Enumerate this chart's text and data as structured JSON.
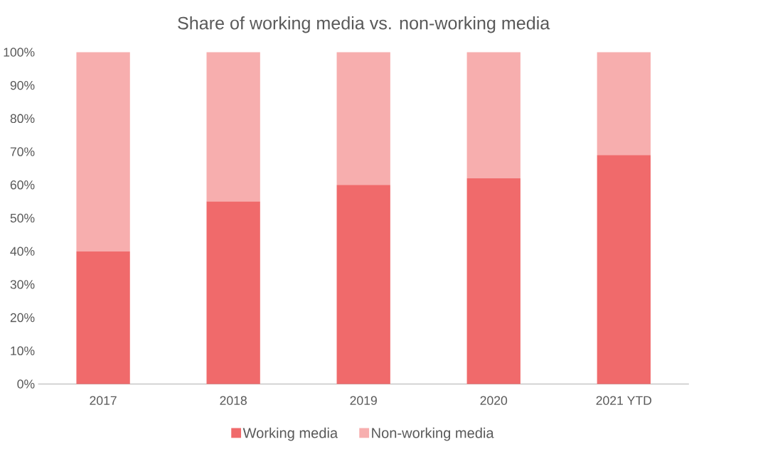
{
  "chart_data": {
    "type": "bar",
    "title": "Share of working media vs. non-working media",
    "stacked": true,
    "categories": [
      "2017",
      "2018",
      "2019",
      "2020",
      "2021 YTD"
    ],
    "series": [
      {
        "name": "Working media",
        "color": "#f06a6b",
        "values": [
          40,
          55,
          60,
          62,
          69
        ]
      },
      {
        "name": "Non-working media",
        "color": "#f7aeae",
        "values": [
          60,
          45,
          40,
          38,
          31
        ]
      }
    ],
    "ylim": [
      0,
      100
    ],
    "yticks": [
      {
        "value": 0,
        "label": "0%"
      },
      {
        "value": 10,
        "label": "10%"
      },
      {
        "value": 20,
        "label": "20%"
      },
      {
        "value": 30,
        "label": "30%"
      },
      {
        "value": 40,
        "label": "40%"
      },
      {
        "value": 50,
        "label": "50%"
      },
      {
        "value": 60,
        "label": "60%"
      },
      {
        "value": 70,
        "label": "70%"
      },
      {
        "value": 80,
        "label": "80%"
      },
      {
        "value": 90,
        "label": "90%"
      },
      {
        "value": 100,
        "label": "100%"
      }
    ],
    "legend": "bottom"
  }
}
